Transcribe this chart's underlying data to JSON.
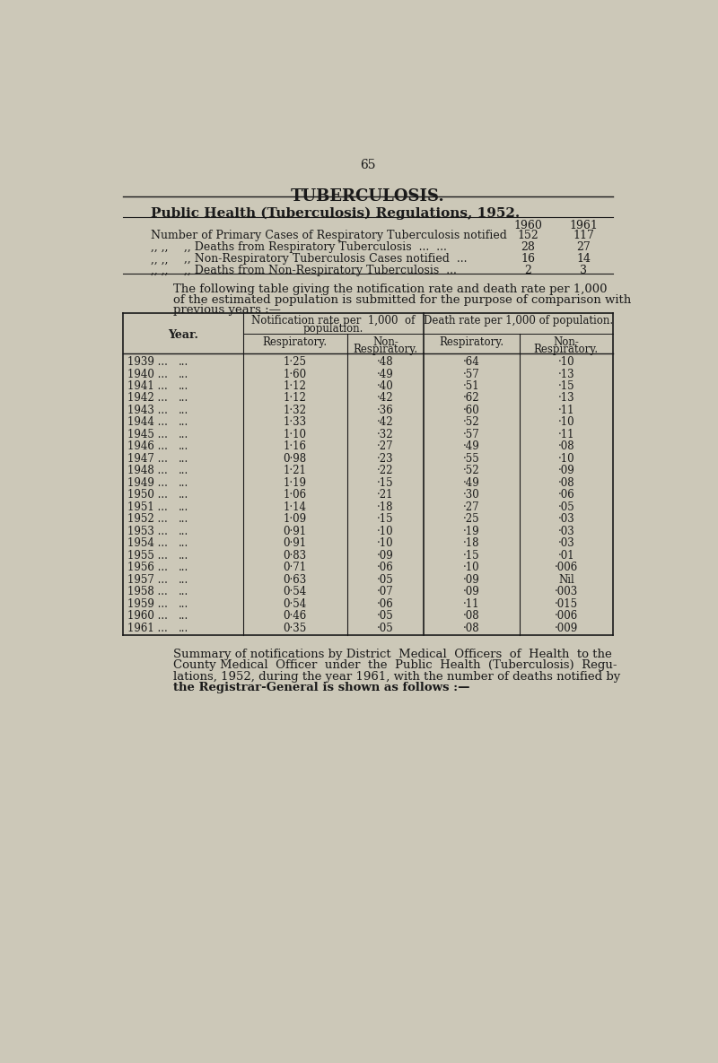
{
  "page_number": "65",
  "title": "TUBERCULOSIS.",
  "subtitle": "Public Health (Tuberculosis) Regulations, 1952.",
  "bg_color": "#ccc8b8",
  "years": [
    1939,
    1940,
    1941,
    1942,
    1943,
    1944,
    1945,
    1946,
    1947,
    1948,
    1949,
    1950,
    1951,
    1952,
    1953,
    1954,
    1955,
    1956,
    1957,
    1958,
    1959,
    1960,
    1961
  ],
  "notif_resp": [
    "1·25",
    "1·60",
    "1·12",
    "1·12",
    "1·32",
    "1·33",
    "1·10",
    "1·16",
    "0·98",
    "1·21",
    "1·19",
    "1·06",
    "1·14",
    "1·09",
    "0·91",
    "0·91",
    "0·83",
    "0·71",
    "0·63",
    "0·54",
    "0·54",
    "0·46",
    "0·35"
  ],
  "notif_non_resp": [
    "·48",
    "·49",
    "·40",
    "·42",
    "·36",
    "·42",
    "·32",
    "·27",
    "·23",
    "·22",
    "·15",
    "·21",
    "·18",
    "·15",
    "·10",
    "·10",
    "·09",
    "·06",
    "·05",
    "·07",
    "·06",
    "·05",
    "·05"
  ],
  "death_resp": [
    "·64",
    "·57",
    "·51",
    "·62",
    "·60",
    "·52",
    "·57",
    "·49",
    "·55",
    "·52",
    "·49",
    "·30",
    "·27",
    "·25",
    "·19",
    "·18",
    "·15",
    "·10",
    "·09",
    "·09",
    "·11",
    "·08",
    "·08"
  ],
  "death_non_resp": [
    "·10",
    "·13",
    "·15",
    "·13",
    "·11",
    "·10",
    "·11",
    "·08",
    "·10",
    "·09",
    "·08",
    "·06",
    "·05",
    "·03",
    "·03",
    "·03",
    "·01",
    "·006",
    "Nil",
    "·003",
    "·015",
    "·006",
    "·009"
  ],
  "summary_rows": [
    {
      "label": "Number of Primary Cases of Respiratory Tuberculosis notified",
      "prefix": "",
      "v1960": "152",
      "v1961": "117"
    },
    {
      "label": "Deaths from Respiratory Tuberculosis",
      "prefix": ",, ,,",
      "dots": "  ...  ...",
      "v1960": "28",
      "v1961": "27"
    },
    {
      "label": "Non-Respiratory Tuberculosis Cases notified",
      "prefix": ",, ,,",
      "dots": "  ...",
      "v1960": "16",
      "v1961": "14"
    },
    {
      "label": "Deaths from Non-Respiratory Tuberculosis",
      "prefix": ",, ,,",
      "dots": "  ...",
      "v1960": "2",
      "v1961": "3"
    }
  ]
}
